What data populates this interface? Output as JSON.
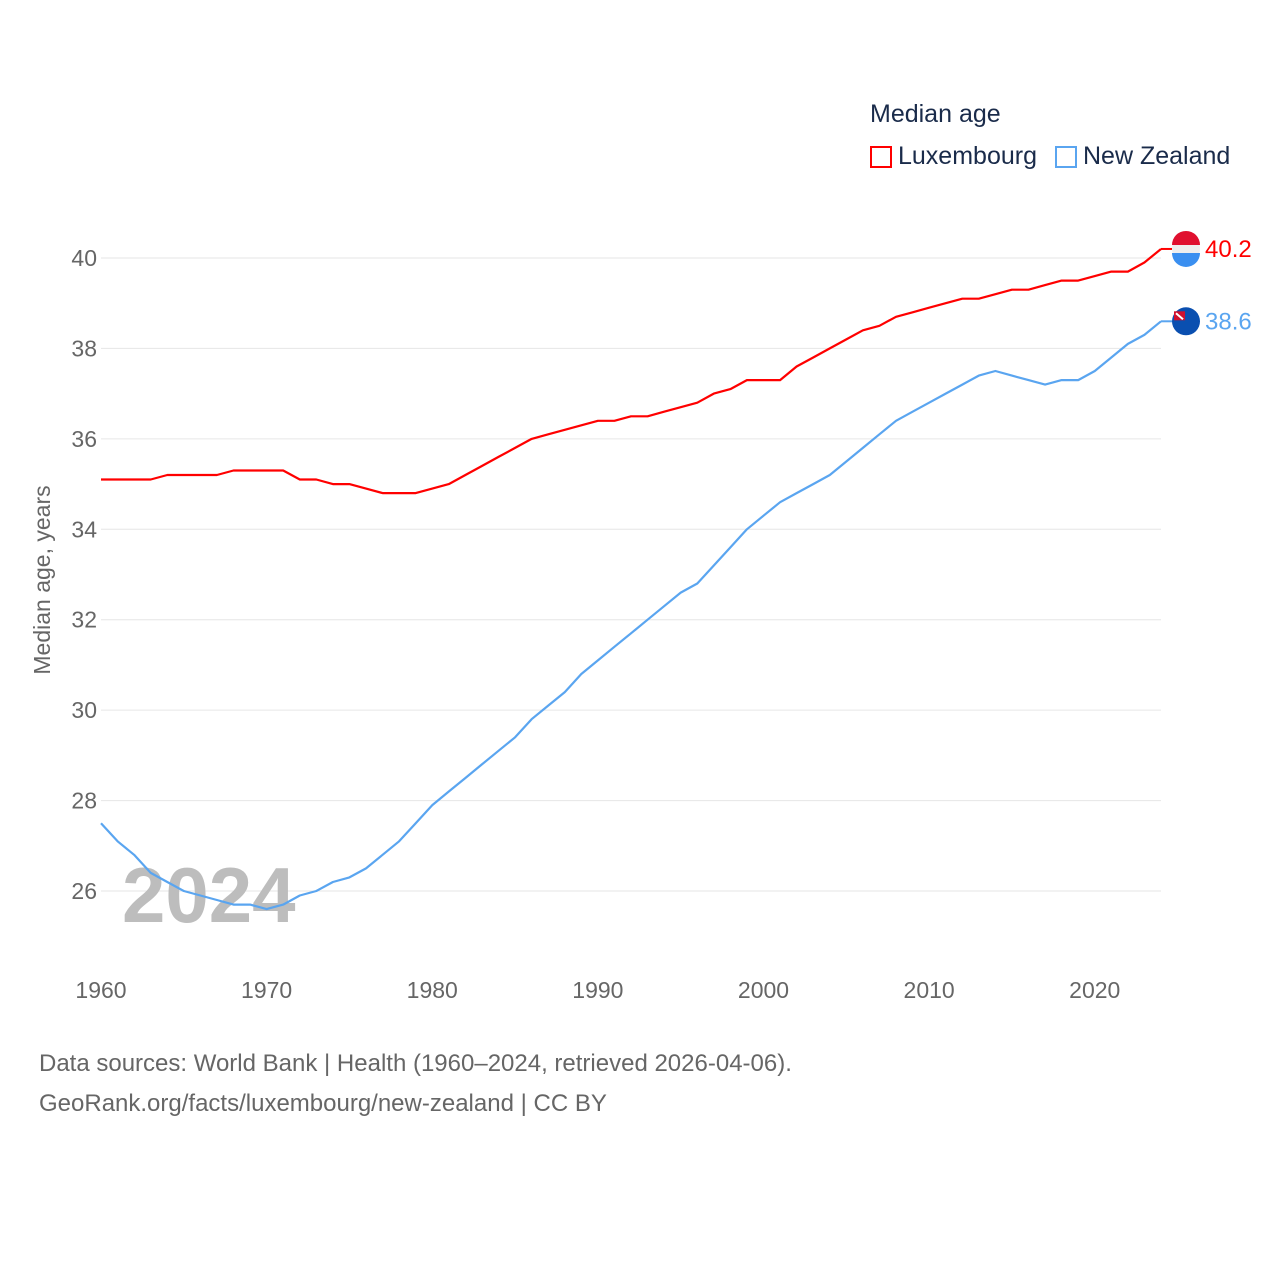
{
  "chart_data": {
    "type": "line",
    "title": "Median age",
    "xlabel": "",
    "ylabel": "Median age, years",
    "xlim": [
      1960,
      2024
    ],
    "ylim": [
      24.8,
      41
    ],
    "x_ticks": [
      1960,
      1970,
      1980,
      1990,
      2000,
      2010,
      2020
    ],
    "y_ticks": [
      26,
      28,
      30,
      32,
      34,
      36,
      38,
      40
    ],
    "grid": true,
    "legend_position": "top-right",
    "watermark_year": "2024",
    "x": [
      1960,
      1961,
      1962,
      1963,
      1964,
      1965,
      1966,
      1967,
      1968,
      1969,
      1970,
      1971,
      1972,
      1973,
      1974,
      1975,
      1976,
      1977,
      1978,
      1979,
      1980,
      1981,
      1982,
      1983,
      1984,
      1985,
      1986,
      1987,
      1988,
      1989,
      1990,
      1991,
      1992,
      1993,
      1994,
      1995,
      1996,
      1997,
      1998,
      1999,
      2000,
      2001,
      2002,
      2003,
      2004,
      2005,
      2006,
      2007,
      2008,
      2009,
      2010,
      2011,
      2012,
      2013,
      2014,
      2015,
      2016,
      2017,
      2018,
      2019,
      2020,
      2021,
      2022,
      2023,
      2024
    ],
    "series": [
      {
        "name": "Luxembourg",
        "color": "#ff0000",
        "end_label": "40.2",
        "values": [
          35.1,
          35.1,
          35.1,
          35.1,
          35.2,
          35.2,
          35.2,
          35.2,
          35.3,
          35.3,
          35.3,
          35.3,
          35.1,
          35.1,
          35.0,
          35.0,
          34.9,
          34.8,
          34.8,
          34.8,
          34.9,
          35.0,
          35.2,
          35.4,
          35.6,
          35.8,
          36.0,
          36.1,
          36.2,
          36.3,
          36.4,
          36.4,
          36.5,
          36.5,
          36.6,
          36.7,
          36.8,
          37.0,
          37.1,
          37.3,
          37.3,
          37.3,
          37.6,
          37.8,
          38.0,
          38.2,
          38.4,
          38.5,
          38.7,
          38.8,
          38.9,
          39.0,
          39.1,
          39.1,
          39.2,
          39.3,
          39.3,
          39.4,
          39.5,
          39.5,
          39.6,
          39.7,
          39.7,
          39.9,
          40.2
        ]
      },
      {
        "name": "New Zealand",
        "color": "#5aa5f0",
        "end_label": "38.6",
        "values": [
          27.5,
          27.1,
          26.8,
          26.4,
          26.2,
          26.0,
          25.9,
          25.8,
          25.7,
          25.7,
          25.6,
          25.7,
          25.9,
          26.0,
          26.2,
          26.3,
          26.5,
          26.8,
          27.1,
          27.5,
          27.9,
          28.2,
          28.5,
          28.8,
          29.1,
          29.4,
          29.8,
          30.1,
          30.4,
          30.8,
          31.1,
          31.4,
          31.7,
          32.0,
          32.3,
          32.6,
          32.8,
          33.2,
          33.6,
          34.0,
          34.3,
          34.6,
          34.8,
          35.0,
          35.2,
          35.5,
          35.8,
          36.1,
          36.4,
          36.6,
          36.8,
          37.0,
          37.2,
          37.4,
          37.5,
          37.4,
          37.3,
          37.2,
          37.3,
          37.3,
          37.5,
          37.8,
          38.1,
          38.3,
          38.6
        ]
      }
    ]
  },
  "footer": {
    "line1": "Data sources: World Bank | Health (1960–2024, retrieved 2026-04-06).",
    "line2": "GeoRank.org/facts/luxembourg/new-zealand | CC BY"
  }
}
